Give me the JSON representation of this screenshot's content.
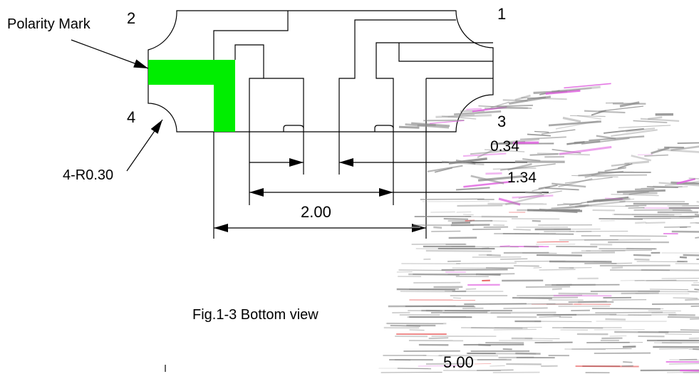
{
  "labels": {
    "polarity_mark": "Polarity Mark",
    "pin_1": "1",
    "pin_2": "2",
    "pin_3": "3",
    "pin_4": "4",
    "corner_radius": "4-R0.30",
    "dim_034": "0.34",
    "dim_134": "1.34",
    "dim_200": "2.00",
    "dim_500": "5.00",
    "caption": "Fig.1-3 Bottom view"
  },
  "colors": {
    "polarity_fill": "#00ee00",
    "line": "#000000",
    "artifact_gray": "#8a8a8a",
    "artifact_pink": "#e060e0",
    "artifact_red": "#e03030"
  }
}
